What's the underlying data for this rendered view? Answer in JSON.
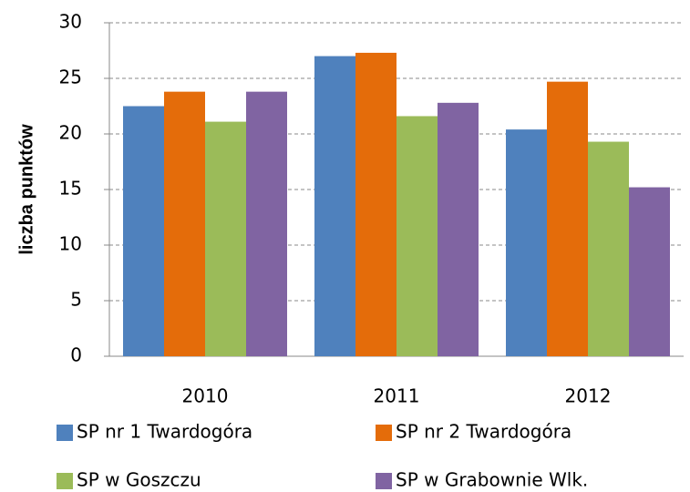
{
  "chart_data": {
    "type": "bar",
    "y_label": "liczba punktów",
    "categories": [
      "2010",
      "2011",
      "2012"
    ],
    "series": [
      {
        "name": "SP nr 1 Twardogóra",
        "color": "#4f81bd",
        "values": [
          22.5,
          27.0,
          20.4
        ]
      },
      {
        "name": "SP nr 2 Twardogóra",
        "color": "#e46c0a",
        "values": [
          23.8,
          27.3,
          24.7
        ]
      },
      {
        "name": "SP w Goszczu",
        "color": "#9bbb59",
        "values": [
          21.1,
          21.6,
          19.3
        ]
      },
      {
        "name": "SP w Grabownie Wlk.",
        "color": "#8064a2",
        "values": [
          23.8,
          22.8,
          15.2
        ]
      }
    ],
    "ylim": [
      0,
      30
    ],
    "yticks": [
      0,
      5,
      10,
      15,
      20,
      25,
      30
    ],
    "grid": true
  }
}
